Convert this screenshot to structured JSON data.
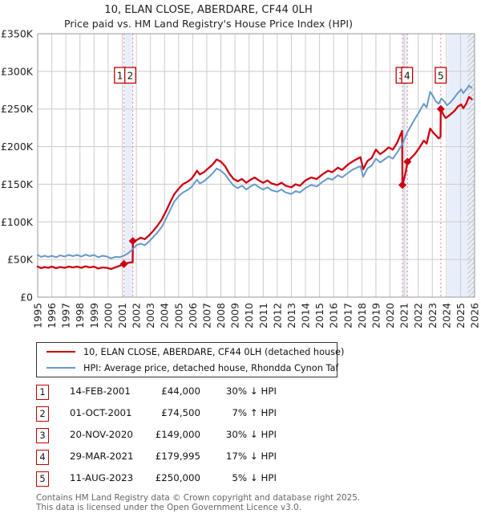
{
  "title": {
    "line1": "10, ELAN CLOSE, ABERDARE, CF44 0LH",
    "line2": "Price paid vs. HM Land Registry's House Price Index (HPI)"
  },
  "legend": [
    {
      "label": "10, ELAN CLOSE, ABERDARE, CF44 0LH (detached house)",
      "color": "#cc0011"
    },
    {
      "label": "HPI: Average price, detached house, Rhondda Cynon Taf",
      "color": "#6699cc"
    }
  ],
  "transactions": [
    {
      "num": "1",
      "date": "14-FEB-2001",
      "price": "£44,000",
      "hpi": "30% ↓ HPI"
    },
    {
      "num": "2",
      "date": "01-OCT-2001",
      "price": "£74,500",
      "hpi": "7% ↑ HPI"
    },
    {
      "num": "3",
      "date": "20-NOV-2020",
      "price": "£149,000",
      "hpi": "30% ↓ HPI"
    },
    {
      "num": "4",
      "date": "29-MAR-2021",
      "price": "£179,995",
      "hpi": "17% ↓ HPI"
    },
    {
      "num": "5",
      "date": "11-AUG-2023",
      "price": "£250,000",
      "hpi": "5% ↓ HPI"
    }
  ],
  "footer": {
    "line1": "Contains HM Land Registry data © Crown copyright and database right 2025.",
    "line2": "This data is licensed under the Open Government Licence v3.0."
  },
  "chart_data": {
    "type": "line",
    "unit": "GBP thousands",
    "x_range": [
      1995,
      2026
    ],
    "y_range": [
      0,
      350
    ],
    "grid": true,
    "y_ticks": [
      {
        "v": 0,
        "label": "£0"
      },
      {
        "v": 50,
        "label": "£50K"
      },
      {
        "v": 100,
        "label": "£100K"
      },
      {
        "v": 150,
        "label": "£150K"
      },
      {
        "v": 200,
        "label": "£200K"
      },
      {
        "v": 250,
        "label": "£250K"
      },
      {
        "v": 300,
        "label": "£300K"
      },
      {
        "v": 350,
        "label": "£350K"
      }
    ],
    "x_ticks": [
      1995,
      1996,
      1997,
      1998,
      1999,
      2000,
      2001,
      2002,
      2003,
      2004,
      2005,
      2006,
      2007,
      2008,
      2009,
      2010,
      2011,
      2012,
      2013,
      2014,
      2015,
      2016,
      2017,
      2018,
      2019,
      2020,
      2021,
      2022,
      2023,
      2024,
      2025,
      2026
    ],
    "colors": {
      "property_line": "#cc0011",
      "hpi_line": "#6699cc",
      "sale_line": "#f08080",
      "band": "#e9effa",
      "grid": "#cccccc",
      "border": "#999999",
      "hatch": "#bbbbbb",
      "marker_box_border": "#c00000"
    },
    "bands": [
      [
        2001.12,
        2001.75
      ],
      [
        2020.88,
        2021.24
      ],
      [
        2024.08,
        2026
      ]
    ],
    "hatch_band": [
      2025.5,
      2026
    ],
    "sales": [
      {
        "n": "1",
        "year": 2001.12,
        "value": 44,
        "box_dx": -5
      },
      {
        "n": "2",
        "year": 2001.75,
        "value": 74.5,
        "box_dx": -3.2
      },
      {
        "n": "3",
        "year": 2020.88,
        "value": 149,
        "box_dx": -1
      },
      {
        "n": "4",
        "year": 2021.24,
        "value": 180,
        "box_dx": -0.5
      },
      {
        "n": "5",
        "year": 2023.6,
        "value": 250,
        "box_dx": 0
      }
    ],
    "series": [
      {
        "name": "10, ELAN CLOSE, ABERDARE, CF44 0LH (detached house)",
        "color": "#cc0011",
        "width": 2.3,
        "points": [
          [
            1995.0,
            40.5
          ],
          [
            1995.25,
            38.5
          ],
          [
            1995.5,
            40
          ],
          [
            1995.75,
            39
          ],
          [
            1996.0,
            40.5
          ],
          [
            1996.3,
            38.5
          ],
          [
            1996.6,
            40
          ],
          [
            1996.9,
            39
          ],
          [
            1997.2,
            40.5
          ],
          [
            1997.5,
            39.5
          ],
          [
            1997.8,
            40.5
          ],
          [
            1998.1,
            39
          ],
          [
            1998.4,
            41
          ],
          [
            1998.7,
            39.5
          ],
          [
            1999.0,
            40.5
          ],
          [
            1999.3,
            38
          ],
          [
            1999.6,
            39.5
          ],
          [
            1999.9,
            39
          ],
          [
            2000.2,
            37.5
          ],
          [
            2000.5,
            39.5
          ],
          [
            2000.8,
            41.5
          ],
          [
            2001.12,
            44
          ],
          [
            2001.4,
            45.5
          ],
          [
            2001.74,
            46.5
          ],
          [
            2001.76,
            74.5
          ],
          [
            2002.0,
            75.5
          ],
          [
            2002.3,
            79
          ],
          [
            2002.6,
            77
          ],
          [
            2002.9,
            82
          ],
          [
            2003.2,
            88
          ],
          [
            2003.5,
            95
          ],
          [
            2003.8,
            103
          ],
          [
            2004.1,
            114
          ],
          [
            2004.4,
            126
          ],
          [
            2004.7,
            137
          ],
          [
            2005.0,
            144
          ],
          [
            2005.3,
            150
          ],
          [
            2005.6,
            153
          ],
          [
            2005.9,
            157
          ],
          [
            2006.1,
            162
          ],
          [
            2006.3,
            168
          ],
          [
            2006.5,
            163
          ],
          [
            2006.8,
            166
          ],
          [
            2007.1,
            171
          ],
          [
            2007.4,
            176
          ],
          [
            2007.7,
            183
          ],
          [
            2008.0,
            180
          ],
          [
            2008.3,
            174
          ],
          [
            2008.6,
            164
          ],
          [
            2008.9,
            157
          ],
          [
            2009.2,
            154
          ],
          [
            2009.5,
            157
          ],
          [
            2009.8,
            152
          ],
          [
            2010.1,
            156
          ],
          [
            2010.4,
            159
          ],
          [
            2010.7,
            155
          ],
          [
            2011.0,
            152
          ],
          [
            2011.3,
            155
          ],
          [
            2011.6,
            151
          ],
          [
            2012.0,
            149
          ],
          [
            2012.3,
            152
          ],
          [
            2012.6,
            148
          ],
          [
            2013.0,
            146
          ],
          [
            2013.3,
            150
          ],
          [
            2013.6,
            148
          ],
          [
            2014.0,
            155
          ],
          [
            2014.4,
            159
          ],
          [
            2014.8,
            157
          ],
          [
            2015.2,
            163
          ],
          [
            2015.6,
            168
          ],
          [
            2015.9,
            166
          ],
          [
            2016.3,
            172
          ],
          [
            2016.6,
            169
          ],
          [
            2017.0,
            176
          ],
          [
            2017.4,
            181
          ],
          [
            2017.9,
            186
          ],
          [
            2018.1,
            170
          ],
          [
            2018.4,
            181
          ],
          [
            2018.7,
            185
          ],
          [
            2019.0,
            196
          ],
          [
            2019.3,
            190
          ],
          [
            2019.6,
            194
          ],
          [
            2019.9,
            199
          ],
          [
            2020.2,
            196
          ],
          [
            2020.5,
            205
          ],
          [
            2020.86,
            221
          ],
          [
            2020.88,
            149
          ],
          [
            2021.1,
            165
          ],
          [
            2021.24,
            180
          ],
          [
            2021.5,
            185
          ],
          [
            2021.8,
            191
          ],
          [
            2022.1,
            199
          ],
          [
            2022.4,
            208
          ],
          [
            2022.6,
            204
          ],
          [
            2022.85,
            224
          ],
          [
            2023.05,
            219
          ],
          [
            2023.25,
            215
          ],
          [
            2023.45,
            211
          ],
          [
            2023.58,
            213
          ],
          [
            2023.6,
            250
          ],
          [
            2023.8,
            242
          ],
          [
            2023.95,
            238
          ],
          [
            2024.1,
            240
          ],
          [
            2024.3,
            243
          ],
          [
            2024.6,
            248
          ],
          [
            2024.8,
            253
          ],
          [
            2025.05,
            256
          ],
          [
            2025.2,
            251
          ],
          [
            2025.4,
            257
          ],
          [
            2025.6,
            266
          ],
          [
            2025.8,
            263
          ]
        ]
      },
      {
        "name": "HPI: Average price, detached house, Rhondda Cynon Taf",
        "color": "#6699cc",
        "width": 2.0,
        "points": [
          [
            1995.0,
            56
          ],
          [
            1995.25,
            53.5
          ],
          [
            1995.5,
            55
          ],
          [
            1995.75,
            53.5
          ],
          [
            1996.0,
            55
          ],
          [
            1996.3,
            53
          ],
          [
            1996.6,
            55.5
          ],
          [
            1996.9,
            54
          ],
          [
            1997.2,
            56
          ],
          [
            1997.5,
            54.5
          ],
          [
            1997.8,
            56
          ],
          [
            1998.1,
            54
          ],
          [
            1998.4,
            56.5
          ],
          [
            1998.7,
            54.5
          ],
          [
            1999.0,
            56
          ],
          [
            1999.3,
            53
          ],
          [
            1999.6,
            55
          ],
          [
            1999.9,
            54
          ],
          [
            2000.2,
            51.5
          ],
          [
            2000.5,
            53.5
          ],
          [
            2000.8,
            53
          ],
          [
            2001.1,
            55
          ],
          [
            2001.4,
            58
          ],
          [
            2001.7,
            63
          ],
          [
            2002.0,
            69
          ],
          [
            2002.3,
            71
          ],
          [
            2002.6,
            69
          ],
          [
            2002.9,
            74
          ],
          [
            2003.2,
            80
          ],
          [
            2003.5,
            86
          ],
          [
            2003.8,
            93
          ],
          [
            2004.1,
            104
          ],
          [
            2004.4,
            116
          ],
          [
            2004.7,
            127
          ],
          [
            2005.0,
            134
          ],
          [
            2005.3,
            139
          ],
          [
            2005.6,
            142
          ],
          [
            2005.9,
            146
          ],
          [
            2006.1,
            151
          ],
          [
            2006.3,
            156
          ],
          [
            2006.5,
            151
          ],
          [
            2006.8,
            154
          ],
          [
            2007.1,
            159
          ],
          [
            2007.4,
            164
          ],
          [
            2007.7,
            171
          ],
          [
            2008.0,
            168
          ],
          [
            2008.3,
            163
          ],
          [
            2008.6,
            155
          ],
          [
            2008.9,
            148
          ],
          [
            2009.2,
            145
          ],
          [
            2009.5,
            148
          ],
          [
            2009.8,
            143
          ],
          [
            2010.1,
            147
          ],
          [
            2010.4,
            150
          ],
          [
            2010.7,
            146
          ],
          [
            2011.0,
            143
          ],
          [
            2011.3,
            146
          ],
          [
            2011.6,
            142
          ],
          [
            2012.0,
            140
          ],
          [
            2012.3,
            143
          ],
          [
            2012.6,
            139
          ],
          [
            2013.0,
            137
          ],
          [
            2013.3,
            141
          ],
          [
            2013.6,
            139
          ],
          [
            2014.0,
            145
          ],
          [
            2014.4,
            149
          ],
          [
            2014.8,
            147
          ],
          [
            2015.2,
            153
          ],
          [
            2015.6,
            158
          ],
          [
            2015.9,
            156
          ],
          [
            2016.3,
            162
          ],
          [
            2016.6,
            159
          ],
          [
            2017.0,
            165
          ],
          [
            2017.4,
            170
          ],
          [
            2017.9,
            174
          ],
          [
            2018.1,
            160
          ],
          [
            2018.4,
            171
          ],
          [
            2018.7,
            175
          ],
          [
            2019.0,
            184
          ],
          [
            2019.3,
            179
          ],
          [
            2019.6,
            183
          ],
          [
            2019.9,
            187
          ],
          [
            2020.2,
            184
          ],
          [
            2020.5,
            192
          ],
          [
            2020.9,
            204
          ],
          [
            2021.2,
            218
          ],
          [
            2021.5,
            228
          ],
          [
            2021.8,
            238
          ],
          [
            2022.1,
            247
          ],
          [
            2022.4,
            257
          ],
          [
            2022.6,
            252
          ],
          [
            2022.85,
            273
          ],
          [
            2023.05,
            267
          ],
          [
            2023.25,
            260
          ],
          [
            2023.45,
            257
          ],
          [
            2023.65,
            264
          ],
          [
            2023.85,
            260
          ],
          [
            2024.05,
            255
          ],
          [
            2024.3,
            259
          ],
          [
            2024.6,
            266
          ],
          [
            2024.8,
            271
          ],
          [
            2025.05,
            276
          ],
          [
            2025.2,
            271
          ],
          [
            2025.4,
            276
          ],
          [
            2025.6,
            281
          ],
          [
            2025.8,
            278
          ]
        ]
      }
    ]
  }
}
